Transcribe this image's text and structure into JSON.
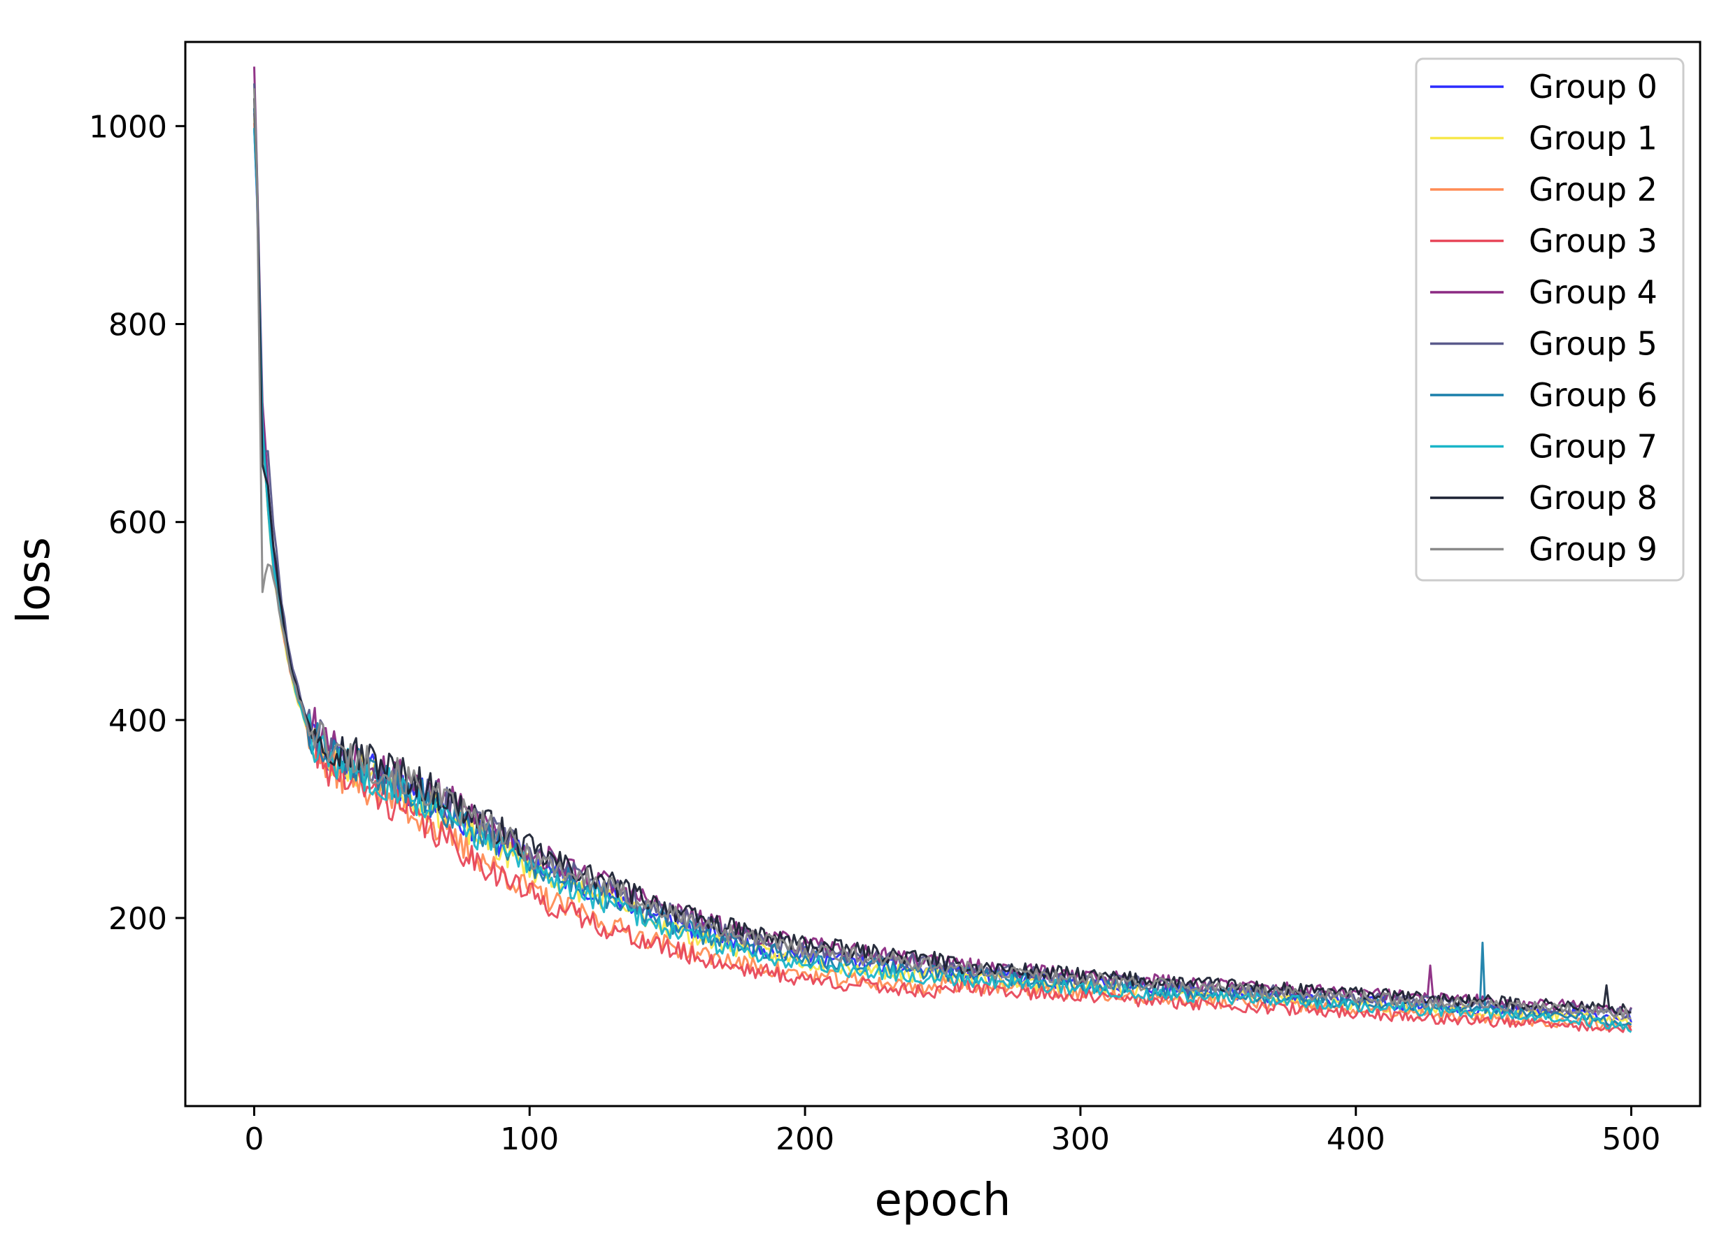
{
  "chart_data": {
    "type": "line",
    "title": "",
    "xlabel": "epoch",
    "ylabel": "loss",
    "xlim": [
      -25,
      525
    ],
    "ylim": [
      10,
      1085
    ],
    "xticks": [
      0,
      100,
      200,
      300,
      400,
      500
    ],
    "yticks": [
      200,
      400,
      600,
      800,
      1000
    ],
    "grid": false,
    "legend_position": "top-right",
    "anchor_x": [
      0,
      1,
      3,
      5,
      7,
      10,
      13,
      16,
      20,
      25,
      30,
      40,
      50,
      60,
      70,
      80,
      90,
      100,
      110,
      120,
      130,
      140,
      150,
      160,
      170,
      180,
      190,
      200,
      220,
      240,
      260,
      280,
      300,
      320,
      340,
      360,
      380,
      400,
      420,
      440,
      460,
      480,
      500
    ],
    "series": [
      {
        "name": "Group 0",
        "color": "#2b2bff",
        "seed": 11,
        "offset": 0,
        "values": [
          1000,
          930,
          700,
          620,
          560,
          500,
          455,
          420,
          390,
          372,
          362,
          352,
          340,
          325,
          308,
          292,
          275,
          258,
          244,
          233,
          222,
          210,
          198,
          188,
          180,
          173,
          167,
          162,
          154,
          148,
          143,
          139,
          134,
          130,
          126,
          123,
          119,
          116,
          112,
          109,
          106,
          103,
          99
        ]
      },
      {
        "name": "Group 1",
        "color": "#f7e84c",
        "seed": 23,
        "offset": -3,
        "values": [
          1010,
          940,
          690,
          610,
          550,
          495,
          450,
          418,
          388,
          370,
          360,
          350,
          338,
          322,
          304,
          288,
          271,
          255,
          241,
          230,
          219,
          207,
          195,
          185,
          177,
          170,
          164,
          159,
          152,
          146,
          141,
          137,
          132,
          128,
          125,
          122,
          118,
          115,
          111,
          108,
          105,
          102,
          97
        ]
      },
      {
        "name": "Group 2",
        "color": "#ff8c55",
        "seed": 37,
        "offset": -10,
        "values": [
          1005,
          935,
          695,
          615,
          552,
          497,
          452,
          419,
          389,
          368,
          358,
          345,
          330,
          312,
          292,
          274,
          256,
          238,
          224,
          213,
          202,
          192,
          183,
          175,
          168,
          162,
          157,
          152,
          146,
          141,
          137,
          133,
          129,
          125,
          122,
          119,
          115,
          112,
          108,
          105,
          102,
          99,
          95
        ]
      },
      {
        "name": "Group 3",
        "color": "#e8485a",
        "seed": 41,
        "offset": -12,
        "values": [
          1015,
          945,
          705,
          618,
          556,
          500,
          454,
          421,
          390,
          368,
          356,
          344,
          328,
          310,
          290,
          272,
          254,
          236,
          222,
          211,
          200,
          190,
          181,
          173,
          166,
          160,
          155,
          150,
          144,
          139,
          135,
          131,
          127,
          123,
          120,
          117,
          113,
          110,
          106,
          103,
          100,
          97,
          93
        ]
      },
      {
        "name": "Group 4",
        "color": "#8b2a82",
        "seed": 53,
        "offset": 6,
        "values": [
          1062,
          960,
          720,
          640,
          570,
          508,
          462,
          426,
          395,
          378,
          366,
          356,
          344,
          330,
          313,
          297,
          280,
          263,
          249,
          238,
          227,
          215,
          203,
          193,
          185,
          178,
          172,
          167,
          159,
          153,
          148,
          144,
          139,
          135,
          131,
          128,
          124,
          121,
          117,
          114,
          111,
          108,
          104
        ]
      },
      {
        "name": "Group 5",
        "color": "#5a5a8c",
        "seed": 67,
        "offset": 4,
        "values": [
          1045,
          955,
          680,
          670,
          600,
          520,
          465,
          430,
          396,
          376,
          364,
          354,
          342,
          328,
          311,
          295,
          278,
          261,
          247,
          236,
          225,
          213,
          201,
          191,
          183,
          176,
          170,
          165,
          157,
          151,
          146,
          142,
          137,
          133,
          129,
          126,
          122,
          119,
          115,
          112,
          109,
          106,
          102
        ]
      },
      {
        "name": "Group 6",
        "color": "#1a7faa",
        "seed": 79,
        "offset": 0,
        "values": [
          1020,
          940,
          700,
          625,
          560,
          502,
          456,
          422,
          391,
          372,
          361,
          351,
          339,
          324,
          306,
          290,
          273,
          256,
          242,
          231,
          220,
          208,
          196,
          186,
          178,
          171,
          165,
          160,
          153,
          147,
          142,
          138,
          133,
          129,
          125,
          122,
          118,
          115,
          111,
          108,
          104,
          100,
          94
        ]
      },
      {
        "name": "Group 7",
        "color": "#1ab5c8",
        "seed": 83,
        "offset": -4,
        "values": [
          1000,
          930,
          690,
          612,
          553,
          498,
          453,
          420,
          389,
          370,
          360,
          351,
          339,
          323,
          305,
          289,
          272,
          255,
          240,
          229,
          218,
          206,
          194,
          184,
          176,
          169,
          163,
          158,
          151,
          145,
          140,
          136,
          131,
          127,
          124,
          121,
          117,
          114,
          110,
          107,
          103,
          99,
          91
        ]
      },
      {
        "name": "Group 8",
        "color": "#1c2233",
        "seed": 97,
        "offset": 8,
        "values": [
          1030,
          950,
          660,
          640,
          575,
          510,
          460,
          425,
          393,
          375,
          364,
          355,
          343,
          329,
          312,
          296,
          279,
          262,
          248,
          237,
          226,
          214,
          202,
          192,
          184,
          177,
          171,
          166,
          158,
          152,
          147,
          143,
          138,
          134,
          130,
          127,
          123,
          120,
          116,
          113,
          110,
          107,
          103
        ]
      },
      {
        "name": "Group 9",
        "color": "#8a8a8a",
        "seed": 101,
        "offset": 5,
        "values": [
          1040,
          950,
          530,
          560,
          545,
          495,
          455,
          423,
          392,
          374,
          363,
          353,
          341,
          327,
          310,
          294,
          277,
          260,
          246,
          235,
          224,
          212,
          200,
          190,
          182,
          175,
          169,
          164,
          156,
          150,
          145,
          141,
          136,
          132,
          128,
          125,
          121,
          118,
          114,
          111,
          108,
          105,
          101
        ]
      }
    ],
    "spikes": [
      {
        "series": "Group 6",
        "x": 446,
        "y": 175
      },
      {
        "series": "Group 4",
        "x": 427,
        "y": 152
      },
      {
        "series": "Group 8",
        "x": 491,
        "y": 132
      }
    ]
  }
}
